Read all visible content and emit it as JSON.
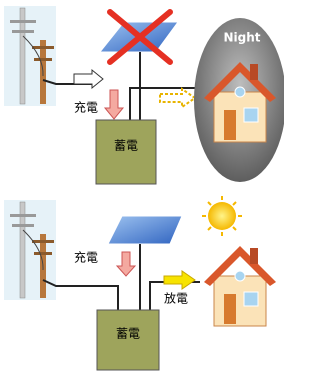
{
  "top_panel": {
    "night_label": "Night",
    "charge_label": "充電",
    "storage_label": "蓄電"
  },
  "bottom_panel": {
    "charge_label": "充電",
    "discharge_label": "放電",
    "storage_label": "蓄電"
  }
}
